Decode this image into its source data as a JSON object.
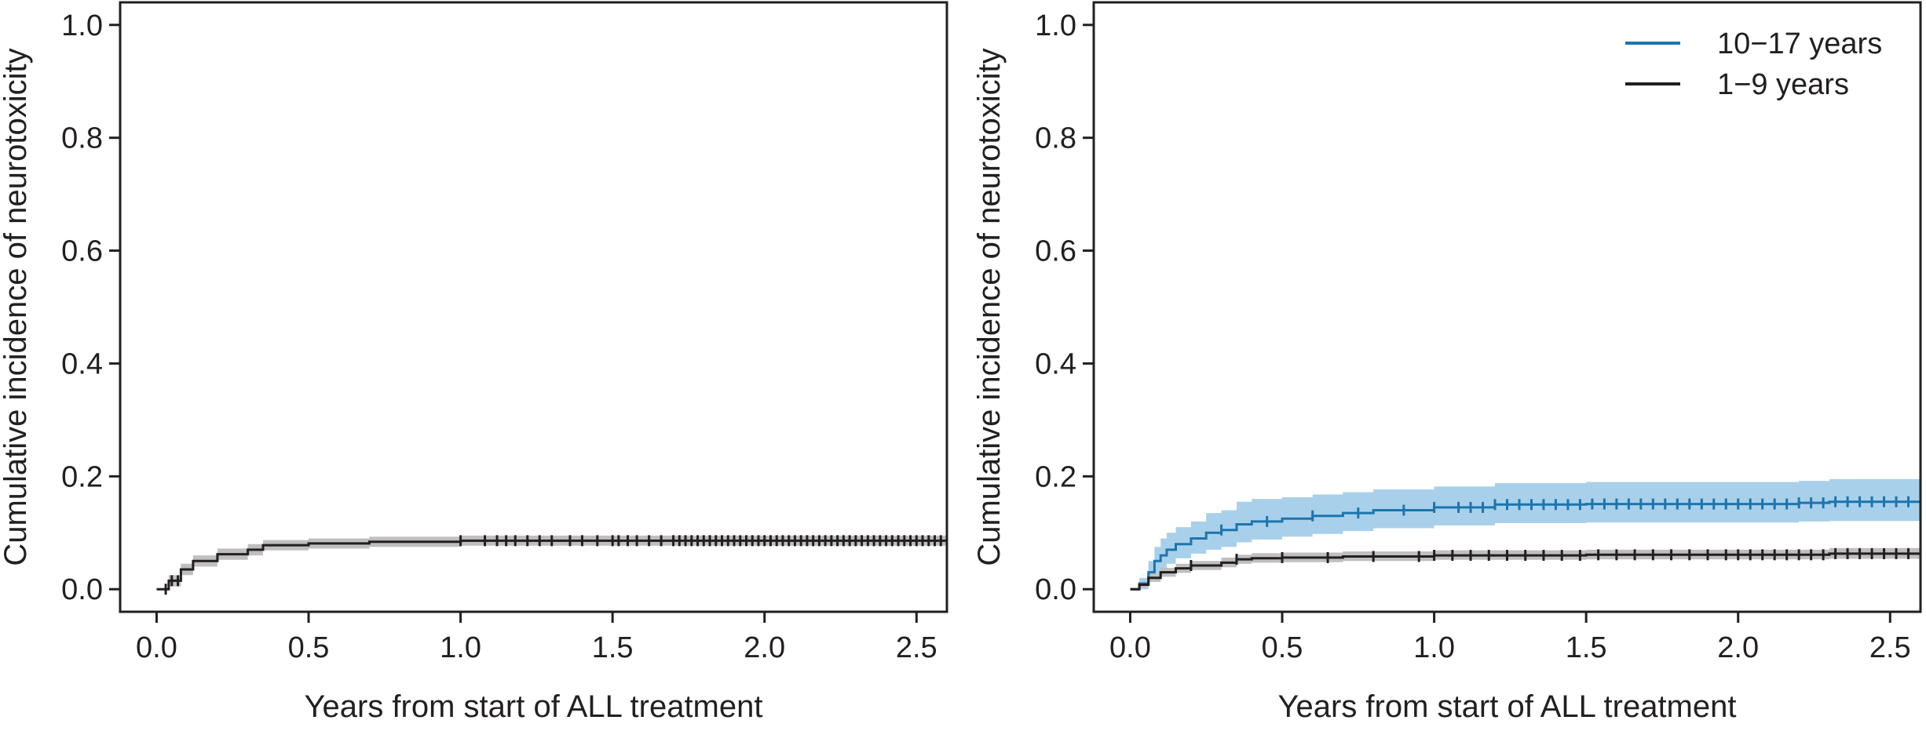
{
  "chart_data": [
    {
      "type": "line",
      "panel": "left",
      "xlabel": "Years from start of ALL treatment",
      "ylabel": "Cumulative incidence of neurotoxicity",
      "xlim": [
        -0.12,
        2.6
      ],
      "ylim": [
        -0.04,
        1.04
      ],
      "xticks": [
        "0.0",
        "0.5",
        "1.0",
        "1.5",
        "2.0",
        "2.5"
      ],
      "yticks": [
        "0.0",
        "0.2",
        "0.4",
        "0.6",
        "0.8",
        "1.0"
      ],
      "legend": "none",
      "series": [
        {
          "color": "#231f20",
          "band_color": "#bfbfbf",
          "x": [
            0.0,
            0.04,
            0.08,
            0.12,
            0.2,
            0.3,
            0.35,
            0.5,
            0.7,
            1.0,
            1.5,
            2.0,
            2.6
          ],
          "y": [
            0.0,
            0.015,
            0.035,
            0.05,
            0.062,
            0.07,
            0.078,
            0.081,
            0.084,
            0.086,
            0.086,
            0.086,
            0.086
          ],
          "lower": [
            0.0,
            0.005,
            0.025,
            0.04,
            0.052,
            0.06,
            0.069,
            0.072,
            0.075,
            0.077,
            0.077,
            0.077,
            0.077
          ],
          "upper": [
            0.0,
            0.025,
            0.045,
            0.06,
            0.072,
            0.08,
            0.087,
            0.09,
            0.093,
            0.095,
            0.095,
            0.095,
            0.095
          ],
          "censor_x": [
            0.03,
            0.05,
            0.07,
            1.0,
            1.08,
            1.12,
            1.15,
            1.18,
            1.22,
            1.26,
            1.3,
            1.36,
            1.4,
            1.45,
            1.5,
            1.52,
            1.55,
            1.58,
            1.62,
            1.66,
            1.7,
            1.72,
            1.74,
            1.76,
            1.78,
            1.8,
            1.82,
            1.84,
            1.86,
            1.88,
            1.9,
            1.92,
            1.94,
            1.96,
            1.98,
            2.0,
            2.02,
            2.04,
            2.06,
            2.08,
            2.1,
            2.12,
            2.14,
            2.16,
            2.18,
            2.2,
            2.22,
            2.24,
            2.26,
            2.28,
            2.3,
            2.32,
            2.34,
            2.36,
            2.38,
            2.4,
            2.42,
            2.44,
            2.46,
            2.48,
            2.5,
            2.52,
            2.54,
            2.56,
            2.58
          ]
        }
      ]
    },
    {
      "type": "line",
      "panel": "right",
      "xlabel": "Years from start of ALL treatment",
      "ylabel": "Cumulative incidence of neurotoxicity",
      "xlim": [
        -0.12,
        2.6
      ],
      "ylim": [
        -0.04,
        1.04
      ],
      "xticks": [
        "0.0",
        "0.5",
        "1.0",
        "1.5",
        "2.0",
        "2.5"
      ],
      "yticks": [
        "0.0",
        "0.2",
        "0.4",
        "0.6",
        "0.8",
        "1.0"
      ],
      "legend": "top-right",
      "series": [
        {
          "name": "10−17 years",
          "color": "#1c75ae",
          "band_color": "#a9d0ea",
          "x": [
            0.0,
            0.03,
            0.06,
            0.08,
            0.1,
            0.12,
            0.15,
            0.2,
            0.25,
            0.3,
            0.35,
            0.4,
            0.5,
            0.6,
            0.7,
            0.8,
            1.0,
            1.2,
            1.5,
            2.0,
            2.2,
            2.3,
            2.6
          ],
          "y": [
            0.0,
            0.01,
            0.03,
            0.05,
            0.06,
            0.07,
            0.08,
            0.09,
            0.1,
            0.105,
            0.115,
            0.12,
            0.125,
            0.13,
            0.135,
            0.14,
            0.145,
            0.15,
            0.151,
            0.151,
            0.153,
            0.155,
            0.155
          ],
          "lower": [
            0.0,
            0.0,
            0.015,
            0.025,
            0.035,
            0.045,
            0.055,
            0.063,
            0.07,
            0.075,
            0.083,
            0.088,
            0.093,
            0.098,
            0.103,
            0.108,
            0.113,
            0.117,
            0.118,
            0.118,
            0.12,
            0.121,
            0.121
          ],
          "upper": [
            0.0,
            0.02,
            0.05,
            0.075,
            0.09,
            0.1,
            0.11,
            0.12,
            0.135,
            0.14,
            0.155,
            0.16,
            0.163,
            0.168,
            0.172,
            0.177,
            0.182,
            0.188,
            0.19,
            0.19,
            0.192,
            0.195,
            0.195
          ],
          "censor_x": [
            0.3,
            0.45,
            0.6,
            0.75,
            0.9,
            1.0,
            1.08,
            1.12,
            1.16,
            1.2,
            1.24,
            1.28,
            1.32,
            1.36,
            1.4,
            1.44,
            1.48,
            1.52,
            1.56,
            1.6,
            1.64,
            1.68,
            1.72,
            1.76,
            1.8,
            1.84,
            1.88,
            1.92,
            1.96,
            2.0,
            2.04,
            2.08,
            2.12,
            2.16,
            2.2,
            2.24,
            2.28,
            2.32,
            2.36,
            2.4,
            2.44,
            2.48,
            2.52,
            2.56
          ]
        },
        {
          "name": "1−9 years",
          "color": "#231f20",
          "band_color": "#bfbfbf",
          "x": [
            0.0,
            0.03,
            0.06,
            0.1,
            0.15,
            0.2,
            0.3,
            0.35,
            0.4,
            0.5,
            0.7,
            1.0,
            1.5,
            2.0,
            2.3,
            2.6
          ],
          "y": [
            0.0,
            0.008,
            0.02,
            0.03,
            0.037,
            0.042,
            0.047,
            0.053,
            0.055,
            0.056,
            0.058,
            0.06,
            0.061,
            0.061,
            0.063,
            0.063
          ],
          "lower": [
            0.0,
            0.003,
            0.013,
            0.022,
            0.029,
            0.034,
            0.039,
            0.045,
            0.047,
            0.048,
            0.05,
            0.052,
            0.053,
            0.053,
            0.054,
            0.054
          ],
          "upper": [
            0.0,
            0.013,
            0.027,
            0.038,
            0.045,
            0.05,
            0.056,
            0.061,
            0.064,
            0.065,
            0.067,
            0.069,
            0.07,
            0.07,
            0.073,
            0.073
          ],
          "censor_x": [
            0.2,
            0.35,
            0.5,
            0.65,
            0.8,
            0.95,
            1.0,
            1.06,
            1.12,
            1.18,
            1.24,
            1.3,
            1.36,
            1.42,
            1.48,
            1.54,
            1.6,
            1.66,
            1.72,
            1.78,
            1.84,
            1.9,
            1.96,
            2.0,
            2.04,
            2.08,
            2.12,
            2.16,
            2.2,
            2.24,
            2.28,
            2.32,
            2.36,
            2.4,
            2.44,
            2.48,
            2.52,
            2.56
          ]
        }
      ]
    }
  ]
}
